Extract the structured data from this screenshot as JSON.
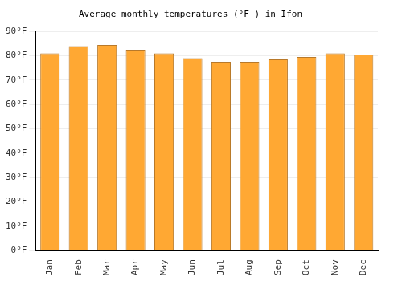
{
  "chart_data": {
    "type": "bar",
    "title": "Average monthly temperatures (°F ) in Ifon",
    "categories": [
      "Jan",
      "Feb",
      "Mar",
      "Apr",
      "May",
      "Jun",
      "Jul",
      "Aug",
      "Sep",
      "Oct",
      "Nov",
      "Dec"
    ],
    "values": [
      81,
      84,
      84.5,
      82.5,
      81,
      79,
      77.5,
      77.5,
      78.5,
      79.5,
      81,
      80.5
    ],
    "color": "#ffa833",
    "ylim": [
      0,
      90
    ],
    "yticks": [
      {
        "value": 0,
        "label": "0°F"
      },
      {
        "value": 10,
        "label": "10°F"
      },
      {
        "value": 20,
        "label": "20°F"
      },
      {
        "value": 30,
        "label": "30°F"
      },
      {
        "value": 40,
        "label": "40°F"
      },
      {
        "value": 50,
        "label": "50°F"
      },
      {
        "value": 60,
        "label": "60°F"
      },
      {
        "value": 70,
        "label": "70°F"
      },
      {
        "value": 80,
        "label": "80°F"
      },
      {
        "value": 90,
        "label": "90°F"
      }
    ],
    "grid": true
  }
}
